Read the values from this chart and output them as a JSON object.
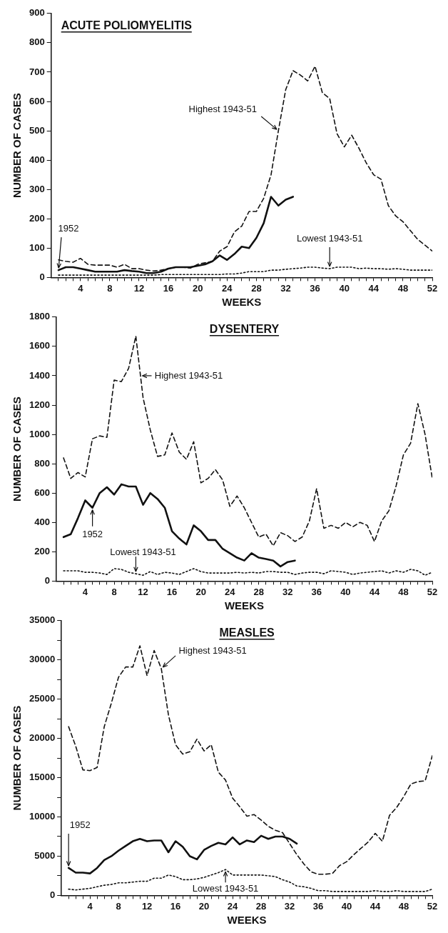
{
  "chart_data": [
    {
      "type": "line",
      "title": "ACUTE POLIOMYELITIS",
      "xlabel": "WEEKS",
      "ylabel": "NUMBER OF CASES",
      "grid": false,
      "legend": false,
      "x": [
        1,
        2,
        3,
        4,
        5,
        6,
        7,
        8,
        9,
        10,
        11,
        12,
        13,
        14,
        15,
        16,
        17,
        18,
        19,
        20,
        21,
        22,
        23,
        24,
        25,
        26,
        27,
        28,
        29,
        30,
        31,
        32,
        33,
        34,
        35,
        36,
        37,
        38,
        39,
        40,
        41,
        42,
        43,
        44,
        45,
        46,
        47,
        48,
        49,
        50,
        51,
        52
      ],
      "series": [
        {
          "color": "#111111",
          "line_style": "dashed",
          "values": [
            60,
            55,
            52,
            65,
            45,
            42,
            42,
            42,
            35,
            45,
            30,
            30,
            25,
            22,
            25,
            30,
            35,
            35,
            32,
            45,
            50,
            55,
            90,
            105,
            155,
            175,
            225,
            225,
            270,
            350,
            500,
            640,
            705,
            690,
            670,
            720,
            630,
            610,
            490,
            445,
            485,
            440,
            390,
            350,
            335,
            245,
            210,
            190,
            160,
            130,
            110,
            90
          ]
        },
        {
          "color": "#111111",
          "line_style": "solid",
          "x": [
            1,
            2,
            3,
            4,
            5,
            6,
            7,
            8,
            9,
            10,
            11,
            12,
            13,
            14,
            15,
            16,
            17,
            18,
            19,
            20,
            21,
            22,
            23,
            24,
            25,
            26,
            27,
            28,
            29,
            30,
            31,
            32,
            33
          ],
          "values": [
            25,
            35,
            35,
            30,
            25,
            20,
            20,
            20,
            20,
            25,
            22,
            20,
            15,
            15,
            20,
            30,
            35,
            35,
            35,
            40,
            45,
            55,
            75,
            60,
            80,
            105,
            100,
            135,
            185,
            275,
            245,
            265,
            275
          ]
        },
        {
          "color": "#111111",
          "line_style": "dotted",
          "values": [
            8,
            8,
            8,
            8,
            8,
            8,
            8,
            8,
            8,
            8,
            8,
            8,
            8,
            8,
            10,
            10,
            10,
            10,
            10,
            10,
            10,
            10,
            10,
            12,
            12,
            15,
            20,
            20,
            20,
            25,
            25,
            28,
            30,
            32,
            35,
            35,
            32,
            30,
            35,
            35,
            35,
            30,
            32,
            30,
            30,
            28,
            30,
            28,
            25,
            25,
            25,
            25
          ]
        }
      ],
      "xlim": [
        0,
        52
      ],
      "ylim": [
        0,
        900
      ],
      "xticks": [
        {
          "value": 1,
          "label": null
        },
        {
          "value": 2,
          "label": null
        },
        {
          "value": 3,
          "label": null
        },
        4,
        {
          "value": 5,
          "label": null
        },
        {
          "value": 6,
          "label": null
        },
        {
          "value": 7,
          "label": null
        },
        8,
        {
          "value": 9,
          "label": null
        },
        {
          "value": 10,
          "label": null
        },
        {
          "value": 11,
          "label": null
        },
        12,
        {
          "value": 13,
          "label": null
        },
        {
          "value": 14,
          "label": null
        },
        {
          "value": 15,
          "label": null
        },
        16,
        {
          "value": 17,
          "label": null
        },
        {
          "value": 18,
          "label": null
        },
        {
          "value": 19,
          "label": null
        },
        20,
        {
          "value": 21,
          "label": null
        },
        {
          "value": 22,
          "label": null
        },
        {
          "value": 23,
          "label": null
        },
        24,
        {
          "value": 25,
          "label": null
        },
        {
          "value": 26,
          "label": null
        },
        {
          "value": 27,
          "label": null
        },
        28,
        {
          "value": 29,
          "label": null
        },
        {
          "value": 30,
          "label": null
        },
        {
          "value": 31,
          "label": null
        },
        32,
        {
          "value": 33,
          "label": null
        },
        {
          "value": 34,
          "label": null
        },
        {
          "value": 35,
          "label": null
        },
        36,
        {
          "value": 37,
          "label": null
        },
        {
          "value": 38,
          "label": null
        },
        {
          "value": 39,
          "label": null
        },
        40,
        {
          "value": 41,
          "label": null
        },
        {
          "value": 42,
          "label": null
        },
        {
          "value": 43,
          "label": null
        },
        44,
        {
          "value": 45,
          "label": null
        },
        {
          "value": 46,
          "label": null
        },
        {
          "value": 47,
          "label": null
        },
        48,
        {
          "value": 49,
          "label": null
        },
        {
          "value": 50,
          "label": null
        },
        {
          "value": 51,
          "label": null
        },
        52
      ],
      "yticks": [
        0,
        100,
        200,
        300,
        400,
        500,
        600,
        700,
        800,
        900
      ],
      "annotations": [
        {
          "text": "1952",
          "x": 1,
          "y": 25
        },
        {
          "text": "Highest 1943-51",
          "x": 31,
          "y": 500
        },
        {
          "text": "Lowest 1943-51",
          "x": 38,
          "y": 30
        }
      ]
    },
    {
      "type": "line",
      "title": "DYSENTERY",
      "xlabel": "WEEKS",
      "ylabel": "NUMBER OF CASES",
      "grid": false,
      "legend": false,
      "x": [
        1,
        2,
        3,
        4,
        5,
        6,
        7,
        8,
        9,
        10,
        11,
        12,
        13,
        14,
        15,
        16,
        17,
        18,
        19,
        20,
        21,
        22,
        23,
        24,
        25,
        26,
        27,
        28,
        29,
        30,
        31,
        32,
        33,
        34,
        35,
        36,
        37,
        38,
        39,
        40,
        41,
        42,
        43,
        44,
        45,
        46,
        47,
        48,
        49,
        50,
        51,
        52
      ],
      "series": [
        {
          "color": "#111111",
          "line_style": "dashed",
          "values": [
            840,
            700,
            740,
            710,
            970,
            990,
            980,
            1370,
            1360,
            1450,
            1670,
            1250,
            1030,
            850,
            860,
            1010,
            880,
            830,
            950,
            670,
            700,
            760,
            690,
            510,
            580,
            500,
            400,
            300,
            320,
            240,
            330,
            310,
            270,
            300,
            410,
            630,
            360,
            380,
            360,
            400,
            370,
            400,
            380,
            270,
            410,
            480,
            650,
            860,
            940,
            1210,
            1000,
            700
          ]
        },
        {
          "color": "#111111",
          "line_style": "solid",
          "x": [
            1,
            2,
            3,
            4,
            5,
            6,
            7,
            8,
            9,
            10,
            11,
            12,
            13,
            14,
            15,
            16,
            17,
            18,
            19,
            20,
            21,
            22,
            23,
            24,
            25,
            26,
            27,
            28,
            29,
            30,
            31,
            32,
            33
          ],
          "values": [
            300,
            320,
            430,
            550,
            500,
            600,
            640,
            590,
            660,
            645,
            645,
            520,
            600,
            560,
            500,
            340,
            290,
            250,
            380,
            340,
            280,
            280,
            220,
            190,
            160,
            140,
            190,
            160,
            150,
            140,
            100,
            130,
            140
          ]
        },
        {
          "color": "#111111",
          "line_style": "dotted",
          "values": [
            70,
            70,
            70,
            60,
            60,
            55,
            45,
            85,
            80,
            60,
            50,
            40,
            65,
            45,
            60,
            55,
            45,
            65,
            85,
            65,
            55,
            55,
            55,
            55,
            60,
            55,
            60,
            55,
            65,
            65,
            60,
            60,
            45,
            55,
            60,
            60,
            50,
            70,
            65,
            60,
            45,
            55,
            60,
            65,
            70,
            55,
            70,
            60,
            80,
            70,
            40,
            60
          ]
        }
      ],
      "xlim": [
        0,
        52
      ],
      "ylim": [
        0,
        1800
      ],
      "xticks": [
        {
          "value": 1,
          "label": null
        },
        {
          "value": 2,
          "label": null
        },
        {
          "value": 3,
          "label": null
        },
        4,
        {
          "value": 5,
          "label": null
        },
        {
          "value": 6,
          "label": null
        },
        {
          "value": 7,
          "label": null
        },
        8,
        {
          "value": 9,
          "label": null
        },
        {
          "value": 10,
          "label": null
        },
        {
          "value": 11,
          "label": null
        },
        12,
        {
          "value": 13,
          "label": null
        },
        {
          "value": 14,
          "label": null
        },
        {
          "value": 15,
          "label": null
        },
        16,
        {
          "value": 17,
          "label": null
        },
        {
          "value": 18,
          "label": null
        },
        {
          "value": 19,
          "label": null
        },
        20,
        {
          "value": 21,
          "label": null
        },
        {
          "value": 22,
          "label": null
        },
        {
          "value": 23,
          "label": null
        },
        24,
        {
          "value": 25,
          "label": null
        },
        {
          "value": 26,
          "label": null
        },
        {
          "value": 27,
          "label": null
        },
        28,
        {
          "value": 29,
          "label": null
        },
        {
          "value": 30,
          "label": null
        },
        {
          "value": 31,
          "label": null
        },
        32,
        {
          "value": 33,
          "label": null
        },
        {
          "value": 34,
          "label": null
        },
        {
          "value": 35,
          "label": null
        },
        36,
        {
          "value": 37,
          "label": null
        },
        {
          "value": 38,
          "label": null
        },
        {
          "value": 39,
          "label": null
        },
        40,
        {
          "value": 41,
          "label": null
        },
        {
          "value": 42,
          "label": null
        },
        {
          "value": 43,
          "label": null
        },
        44,
        {
          "value": 45,
          "label": null
        },
        {
          "value": 46,
          "label": null
        },
        {
          "value": 47,
          "label": null
        },
        48,
        {
          "value": 49,
          "label": null
        },
        {
          "value": 50,
          "label": null
        },
        {
          "value": 51,
          "label": null
        },
        52
      ],
      "yticks": [
        0,
        200,
        400,
        600,
        800,
        1000,
        1200,
        1400,
        1600,
        1800
      ],
      "annotations": [
        {
          "text": "Highest 1943-51",
          "x": 11.6,
          "y": 1400
        },
        {
          "text": "1952",
          "x": 5,
          "y": 500
        },
        {
          "text": "Lowest 1943-51",
          "x": 11,
          "y": 50
        }
      ]
    },
    {
      "type": "line",
      "title": "MEASLES",
      "xlabel": "WEEKS",
      "ylabel": "NUMBER OF CASES",
      "grid": false,
      "legend": false,
      "x": [
        1,
        2,
        3,
        4,
        5,
        6,
        7,
        8,
        9,
        10,
        11,
        12,
        13,
        14,
        15,
        16,
        17,
        18,
        19,
        20,
        21,
        22,
        23,
        24,
        25,
        26,
        27,
        28,
        29,
        30,
        31,
        32,
        33,
        34,
        35,
        36,
        37,
        38,
        39,
        40,
        41,
        42,
        43,
        44,
        45,
        46,
        47,
        48,
        49,
        50,
        51,
        52
      ],
      "series": [
        {
          "color": "#111111",
          "line_style": "dashed",
          "values": [
            21500,
            19000,
            16000,
            15900,
            16300,
            21500,
            24500,
            27800,
            29100,
            29100,
            31800,
            28000,
            31200,
            28900,
            23000,
            19200,
            18000,
            18300,
            19900,
            18400,
            19200,
            15700,
            14700,
            12400,
            11300,
            10100,
            10300,
            9600,
            8800,
            8300,
            8000,
            6600,
            5200,
            4000,
            3000,
            2700,
            2700,
            2800,
            3800,
            4300,
            5200,
            6000,
            6800,
            7900,
            6900,
            10200,
            11200,
            12600,
            14200,
            14500,
            14600,
            17800
          ]
        },
        {
          "color": "#111111",
          "line_style": "solid",
          "x": [
            1,
            2,
            3,
            4,
            5,
            6,
            7,
            8,
            9,
            10,
            11,
            12,
            13,
            14,
            15,
            16,
            17,
            18,
            19,
            20,
            21,
            22,
            23,
            24,
            25,
            26,
            27,
            28,
            29,
            30,
            31,
            32,
            33
          ],
          "values": [
            3500,
            2900,
            2900,
            2800,
            3500,
            4500,
            5000,
            5700,
            6300,
            6900,
            7200,
            6900,
            7000,
            7000,
            5500,
            6900,
            6200,
            5000,
            4600,
            5800,
            6300,
            6700,
            6500,
            7400,
            6500,
            7000,
            6800,
            7600,
            7200,
            7500,
            7500,
            7200,
            6600
          ]
        },
        {
          "color": "#111111",
          "line_style": "dotted",
          "values": [
            800,
            700,
            800,
            900,
            1100,
            1300,
            1400,
            1600,
            1600,
            1700,
            1800,
            1800,
            2200,
            2200,
            2600,
            2400,
            2000,
            2000,
            2100,
            2300,
            2600,
            2900,
            3300,
            2600,
            2600,
            2600,
            2600,
            2600,
            2500,
            2400,
            2000,
            1700,
            1200,
            1100,
            900,
            600,
            600,
            500,
            500,
            500,
            500,
            500,
            500,
            600,
            500,
            500,
            600,
            500,
            500,
            500,
            500,
            800
          ]
        }
      ],
      "xlim": [
        0,
        52
      ],
      "ylim": [
        0,
        35000
      ],
      "xticks": [
        {
          "value": 1,
          "label": null
        },
        {
          "value": 2,
          "label": null
        },
        {
          "value": 3,
          "label": null
        },
        4,
        {
          "value": 5,
          "label": null
        },
        {
          "value": 6,
          "label": null
        },
        {
          "value": 7,
          "label": null
        },
        8,
        {
          "value": 9,
          "label": null
        },
        {
          "value": 10,
          "label": null
        },
        {
          "value": 11,
          "label": null
        },
        12,
        {
          "value": 13,
          "label": null
        },
        {
          "value": 14,
          "label": null
        },
        {
          "value": 15,
          "label": null
        },
        16,
        {
          "value": 17,
          "label": null
        },
        {
          "value": 18,
          "label": null
        },
        {
          "value": 19,
          "label": null
        },
        20,
        {
          "value": 21,
          "label": null
        },
        {
          "value": 22,
          "label": null
        },
        {
          "value": 23,
          "label": null
        },
        24,
        {
          "value": 25,
          "label": null
        },
        {
          "value": 26,
          "label": null
        },
        {
          "value": 27,
          "label": null
        },
        28,
        {
          "value": 29,
          "label": null
        },
        {
          "value": 30,
          "label": null
        },
        {
          "value": 31,
          "label": null
        },
        32,
        {
          "value": 33,
          "label": null
        },
        {
          "value": 34,
          "label": null
        },
        {
          "value": 35,
          "label": null
        },
        36,
        {
          "value": 37,
          "label": null
        },
        {
          "value": 38,
          "label": null
        },
        {
          "value": 39,
          "label": null
        },
        40,
        {
          "value": 41,
          "label": null
        },
        {
          "value": 42,
          "label": null
        },
        {
          "value": 43,
          "label": null
        },
        44,
        {
          "value": 45,
          "label": null
        },
        {
          "value": 46,
          "label": null
        },
        {
          "value": 47,
          "label": null
        },
        48,
        {
          "value": 49,
          "label": null
        },
        {
          "value": 50,
          "label": null
        },
        {
          "value": 51,
          "label": null
        },
        52
      ],
      "yticks": [
        0,
        {
          "value": 2500,
          "label": null
        },
        5000,
        {
          "value": 7500,
          "label": null
        },
        10000,
        {
          "value": 12500,
          "label": null
        },
        15000,
        {
          "value": 17500,
          "label": null
        },
        20000,
        {
          "value": 22500,
          "label": null
        },
        25000,
        {
          "value": 27500,
          "label": null
        },
        30000,
        {
          "value": 32500,
          "label": null
        },
        35000
      ],
      "annotations": [
        {
          "text": "Highest 1943-51",
          "x": 14,
          "y": 28900
        },
        {
          "text": "1952",
          "x": 1,
          "y": 3500
        },
        {
          "text": "Lowest 1943-51",
          "x": 23,
          "y": 3300
        }
      ]
    }
  ]
}
